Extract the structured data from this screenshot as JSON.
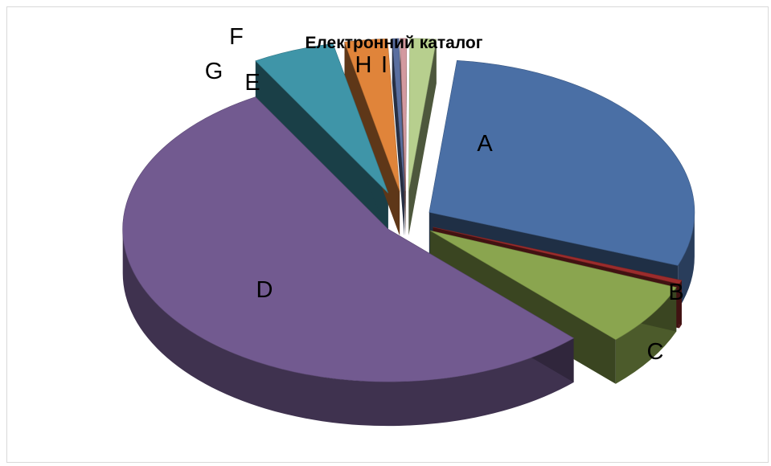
{
  "chart_data": {
    "type": "pie",
    "title": "Електронний каталог",
    "slices": [
      {
        "label": "A",
        "value": 29.0,
        "color": "#4a6fa5"
      },
      {
        "label": "B",
        "value": 0.4,
        "color": "#9b2c2c"
      },
      {
        "label": "C",
        "value": 6.6,
        "color": "#8aa54f"
      },
      {
        "label": "D",
        "value": 54.0,
        "color": "#725a90"
      },
      {
        "label": "E",
        "value": 5.0,
        "color": "#3f95a8"
      },
      {
        "label": "F",
        "value": 2.6,
        "color": "#e0843a"
      },
      {
        "label": "G",
        "value": 0.4,
        "color": "#5a6fa0"
      },
      {
        "label": "H",
        "value": 0.4,
        "color": "#d39aa0"
      },
      {
        "label": "I",
        "value": 1.6,
        "color": "#b7cf8e"
      }
    ],
    "legend": "none",
    "exploded": true,
    "three_d": true
  }
}
